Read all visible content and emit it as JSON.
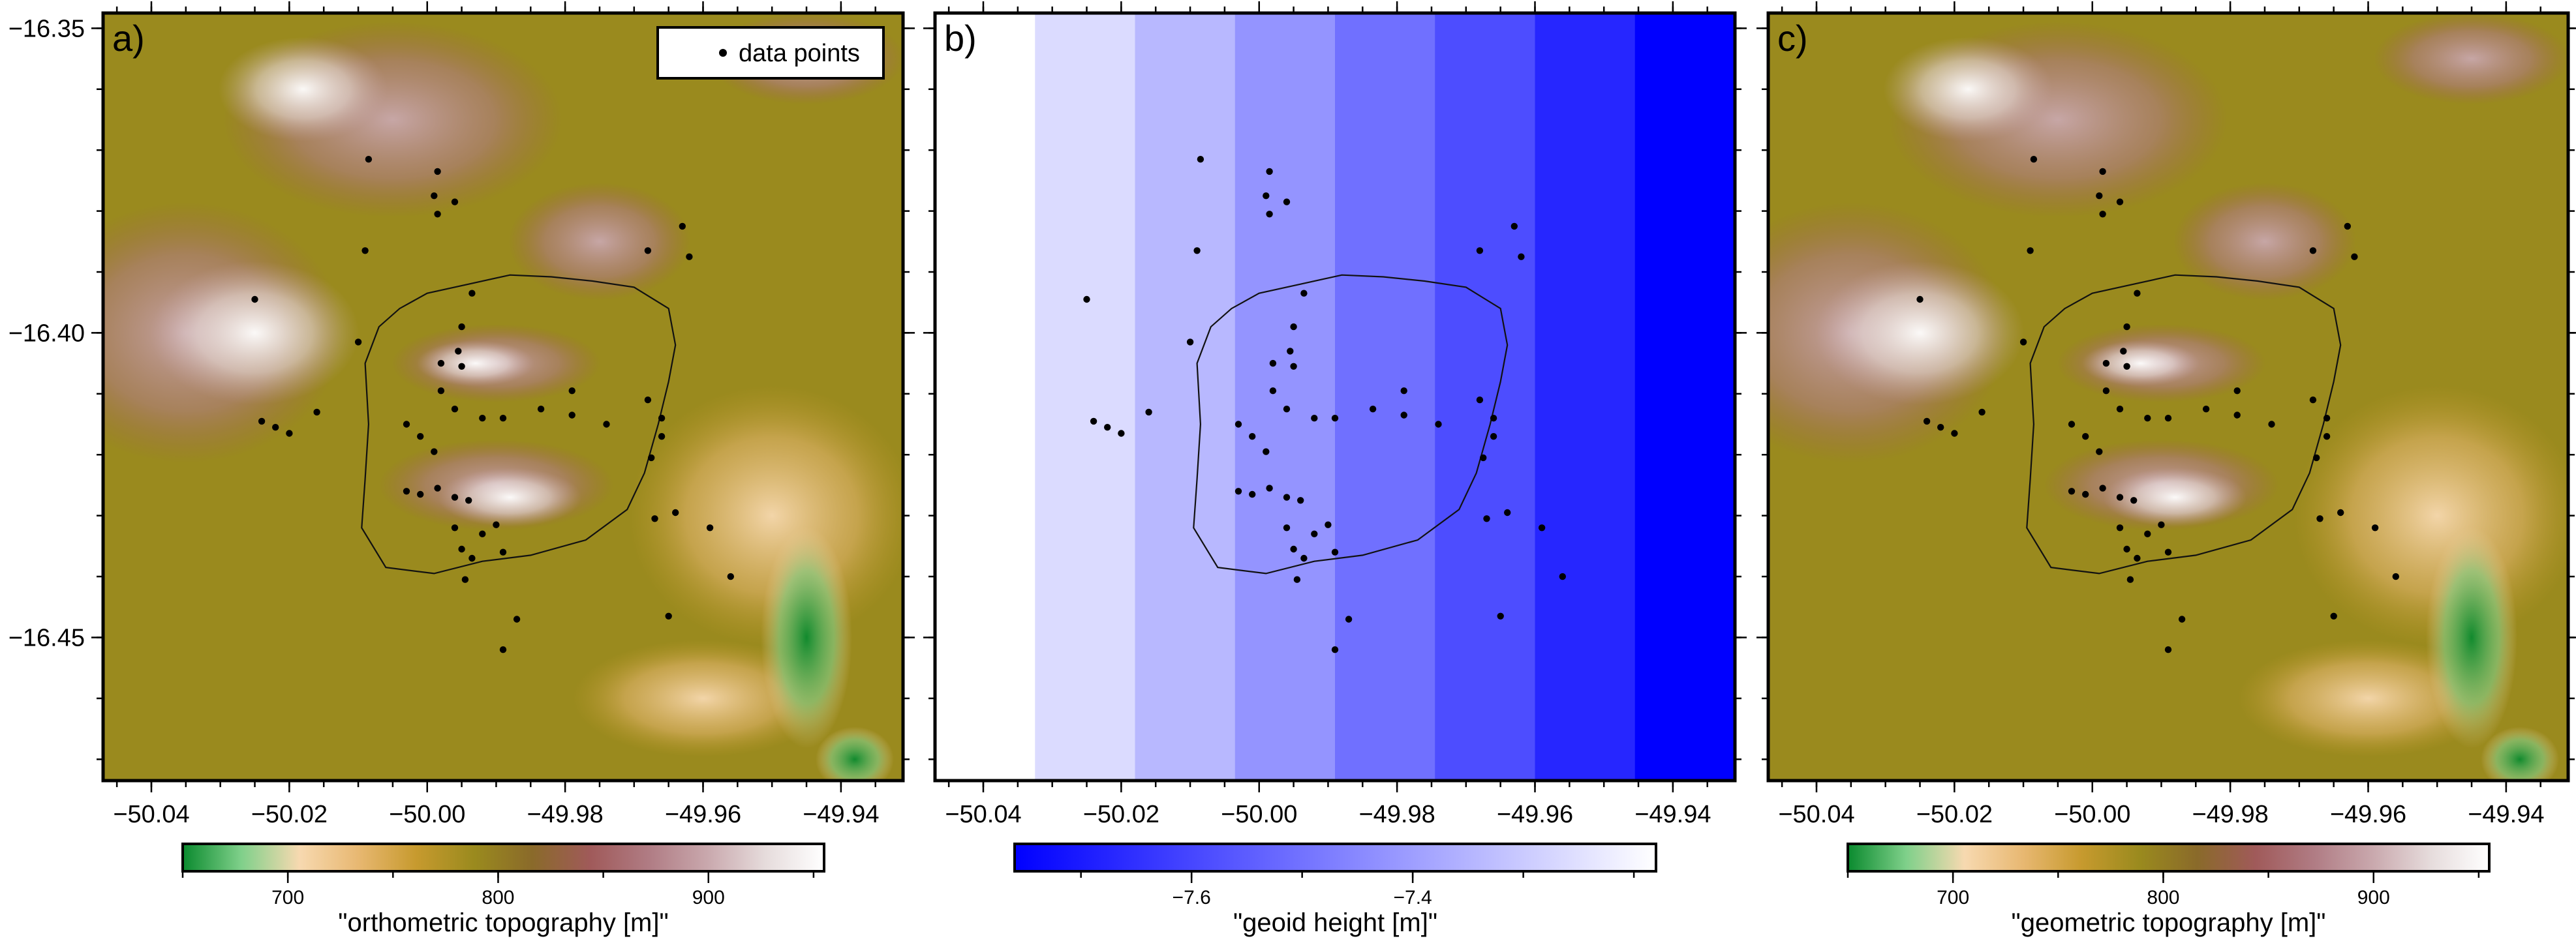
{
  "figure": {
    "x_ticks": [
      -50.04,
      -50.02,
      -50.0,
      -49.98,
      -49.96,
      -49.94
    ],
    "y_ticks": [
      -16.35,
      -16.4,
      -16.45
    ],
    "xlim": [
      -50.047,
      -49.931
    ],
    "ylim": [
      -16.4735,
      -16.3475
    ]
  },
  "chart_data": [
    {
      "type": "heatmap",
      "panel_label": "a)",
      "colorbar_label": "\"orthometric topography [m]\"",
      "colorbar_ticks": [
        700,
        800,
        900
      ],
      "colorbar_range": [
        650,
        955
      ],
      "colormap": [
        "#0a8a2e",
        "#7fd08a",
        "#f7d9b0",
        "#e8b872",
        "#c79a2e",
        "#9a8a1e",
        "#8a6a2a",
        "#a05a5a",
        "#b07c84",
        "#c9a8ad",
        "#e6dcdc",
        "#ffffff"
      ],
      "legend": {
        "entries": [
          "data points"
        ],
        "position": "top-right"
      },
      "has_outline": true
    },
    {
      "type": "heatmap",
      "panel_label": "b)",
      "colorbar_label": "\"geoid height [m]\"",
      "colorbar_ticks": [
        -7.6,
        -7.4
      ],
      "colorbar_range": [
        -7.76,
        -7.18
      ],
      "colormap": [
        "#0000ff",
        "#ffffff"
      ],
      "column_levels": [
        1.0,
        0.86,
        0.72,
        0.58,
        0.44,
        0.3,
        0.15,
        0.0
      ],
      "has_outline": true
    },
    {
      "type": "heatmap",
      "panel_label": "c)",
      "colorbar_label": "\"geometric topography [m]\"",
      "colorbar_ticks": [
        700,
        800,
        900
      ],
      "colorbar_range": [
        650,
        955
      ],
      "colormap": [
        "#0a8a2e",
        "#7fd08a",
        "#f7d9b0",
        "#e8b872",
        "#c79a2e",
        "#9a8a1e",
        "#8a6a2a",
        "#a05a5a",
        "#b07c84",
        "#c9a8ad",
        "#e6dcdc",
        "#ffffff"
      ],
      "has_outline": true
    }
  ],
  "points": [
    {
      "x": -50.0085,
      "y": -16.3715
    },
    {
      "x": -49.9985,
      "y": -16.3735
    },
    {
      "x": -49.999,
      "y": -16.3775
    },
    {
      "x": -49.9985,
      "y": -16.3805
    },
    {
      "x": -49.996,
      "y": -16.3785
    },
    {
      "x": -50.009,
      "y": -16.3865
    },
    {
      "x": -49.9935,
      "y": -16.3935
    },
    {
      "x": -49.995,
      "y": -16.399
    },
    {
      "x": -49.9955,
      "y": -16.403
    },
    {
      "x": -49.995,
      "y": -16.4055
    },
    {
      "x": -49.998,
      "y": -16.405
    },
    {
      "x": -49.998,
      "y": -16.4095
    },
    {
      "x": -49.996,
      "y": -16.4125
    },
    {
      "x": -49.992,
      "y": -16.414
    },
    {
      "x": -49.989,
      "y": -16.414
    },
    {
      "x": -49.9835,
      "y": -16.4125
    },
    {
      "x": -49.979,
      "y": -16.4095
    },
    {
      "x": -49.979,
      "y": -16.4135
    },
    {
      "x": -49.974,
      "y": -16.415
    },
    {
      "x": -49.968,
      "y": -16.411
    },
    {
      "x": -49.966,
      "y": -16.414
    },
    {
      "x": -49.966,
      "y": -16.417
    },
    {
      "x": -49.9675,
      "y": -16.4205
    },
    {
      "x": -50.003,
      "y": -16.415
    },
    {
      "x": -50.001,
      "y": -16.417
    },
    {
      "x": -49.999,
      "y": -16.4195
    },
    {
      "x": -50.024,
      "y": -16.4145
    },
    {
      "x": -50.022,
      "y": -16.4155
    },
    {
      "x": -50.02,
      "y": -16.4165
    },
    {
      "x": -50.016,
      "y": -16.413
    },
    {
      "x": -50.025,
      "y": -16.3945
    },
    {
      "x": -50.01,
      "y": -16.4015
    },
    {
      "x": -49.9985,
      "y": -16.4255
    },
    {
      "x": -50.001,
      "y": -16.4265
    },
    {
      "x": -50.003,
      "y": -16.426
    },
    {
      "x": -49.996,
      "y": -16.427
    },
    {
      "x": -49.994,
      "y": -16.4275
    },
    {
      "x": -49.996,
      "y": -16.432
    },
    {
      "x": -49.995,
      "y": -16.4355
    },
    {
      "x": -49.9935,
      "y": -16.437
    },
    {
      "x": -49.9945,
      "y": -16.4405
    },
    {
      "x": -49.992,
      "y": -16.433
    },
    {
      "x": -49.99,
      "y": -16.4315
    },
    {
      "x": -49.989,
      "y": -16.436
    },
    {
      "x": -49.987,
      "y": -16.447
    },
    {
      "x": -49.989,
      "y": -16.452
    },
    {
      "x": -49.967,
      "y": -16.4305
    },
    {
      "x": -49.964,
      "y": -16.4295
    },
    {
      "x": -49.959,
      "y": -16.432
    },
    {
      "x": -49.956,
      "y": -16.44
    },
    {
      "x": -49.965,
      "y": -16.4465
    },
    {
      "x": -49.968,
      "y": -16.3865
    },
    {
      "x": -49.963,
      "y": -16.3825
    },
    {
      "x": -49.962,
      "y": -16.3875
    }
  ],
  "outline": [
    [
      -49.994,
      -16.392
    ],
    [
      -49.988,
      -16.3905
    ],
    [
      -49.982,
      -16.3908
    ],
    [
      -49.976,
      -16.3915
    ],
    [
      -49.97,
      -16.3925
    ],
    [
      -49.965,
      -16.396
    ],
    [
      -49.964,
      -16.402
    ],
    [
      -49.965,
      -16.408
    ],
    [
      -49.9665,
      -16.415
    ],
    [
      -49.9685,
      -16.423
    ],
    [
      -49.971,
      -16.429
    ],
    [
      -49.977,
      -16.434
    ],
    [
      -49.985,
      -16.4365
    ],
    [
      -49.992,
      -16.4375
    ],
    [
      -49.999,
      -16.4395
    ],
    [
      -50.006,
      -16.4385
    ],
    [
      -50.0095,
      -16.432
    ],
    [
      -50.009,
      -16.424
    ],
    [
      -50.0085,
      -16.415
    ],
    [
      -50.009,
      -16.405
    ],
    [
      -50.007,
      -16.399
    ],
    [
      -50.004,
      -16.396
    ],
    [
      -50.0,
      -16.3935
    ],
    [
      -49.994,
      -16.392
    ]
  ]
}
